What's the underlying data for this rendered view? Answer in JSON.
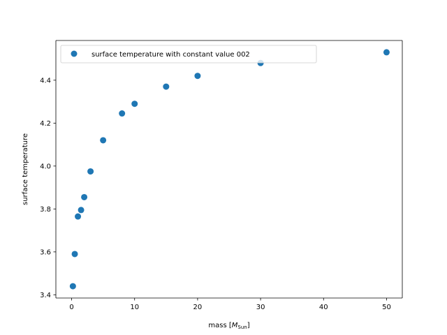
{
  "chart_data": {
    "type": "scatter",
    "title": "",
    "xlabel_prefix": "mass [",
    "xlabel_symbol": "M",
    "xlabel_subscript": "Sun",
    "xlabel_suffix": "]",
    "ylabel": "surface temperature",
    "xlim": [
      -2.5,
      52.5
    ],
    "ylim": [
      3.385,
      4.585
    ],
    "xticks": [
      0,
      10,
      20,
      30,
      40,
      50
    ],
    "yticks": [
      3.4,
      3.6,
      3.8,
      4.0,
      4.2,
      4.4
    ],
    "xtick_labels": [
      "0",
      "10",
      "20",
      "30",
      "40",
      "50"
    ],
    "ytick_labels": [
      "3.4",
      "3.6",
      "3.8",
      "4.0",
      "4.2",
      "4.4"
    ],
    "grid": false,
    "legend_position": "upper-left",
    "series": [
      {
        "name": "surface temperature with constant value 002",
        "color": "#1f77b4",
        "x": [
          0.2,
          0.5,
          1.0,
          1.5,
          2.0,
          3.0,
          5.0,
          8.0,
          10.0,
          15.0,
          20.0,
          30.0,
          50.0
        ],
        "y": [
          3.44,
          3.59,
          3.765,
          3.795,
          3.855,
          3.975,
          4.12,
          4.245,
          4.29,
          4.37,
          4.42,
          4.48,
          4.53
        ]
      }
    ]
  }
}
